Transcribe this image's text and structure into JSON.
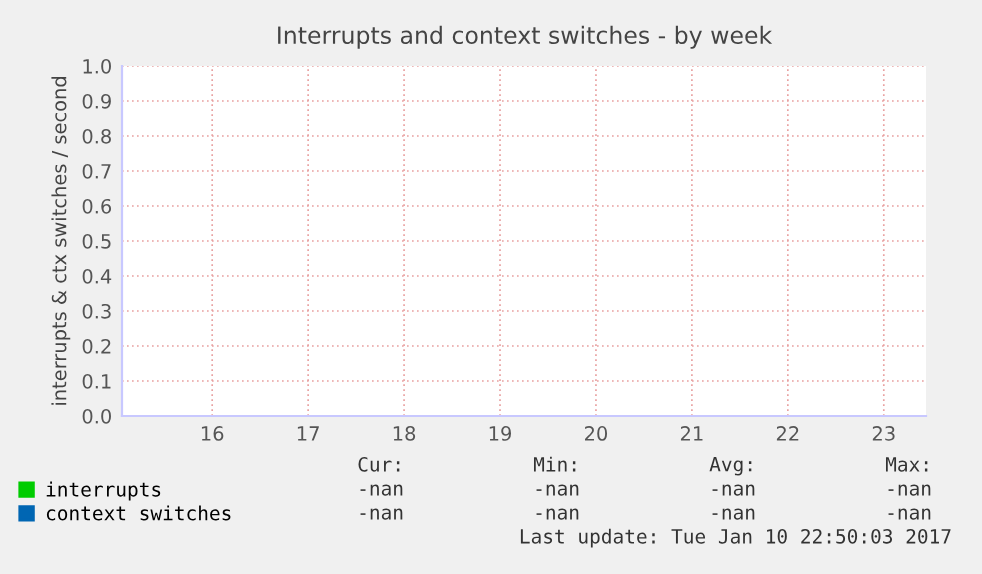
{
  "chart_data": {
    "type": "line",
    "title": "Interrupts and context switches - by week",
    "ylabel": "interrupts & ctx switches / second",
    "series": [
      {
        "name": "interrupts",
        "color": "#00cc00",
        "values": [
          null,
          null,
          null,
          null,
          null,
          null,
          null,
          null
        ]
      },
      {
        "name": "context switches",
        "color": "#0066b3",
        "values": [
          null,
          null,
          null,
          null,
          null,
          null,
          null,
          null
        ]
      }
    ],
    "categories": [
      "16",
      "17",
      "18",
      "19",
      "20",
      "21",
      "22",
      "23"
    ],
    "ylim": [
      0,
      1
    ],
    "yticks": [
      {
        "value": 0,
        "label": "0.0"
      },
      {
        "value": 0.1,
        "label": "0.1"
      },
      {
        "value": 0.2,
        "label": "0.2"
      },
      {
        "value": 0.3,
        "label": "0.3"
      },
      {
        "value": 0.4,
        "label": "0.4"
      },
      {
        "value": 0.5,
        "label": "0.5"
      },
      {
        "value": 0.6,
        "label": "0.6"
      },
      {
        "value": 0.7,
        "label": "0.7"
      },
      {
        "value": 0.8,
        "label": "0.8"
      },
      {
        "value": 0.9,
        "label": "0.9"
      },
      {
        "value": 1,
        "label": "1.0"
      }
    ],
    "grid": true,
    "legend": "bottom",
    "annotations": [
      "Cur:",
      "Min:",
      "Avg:",
      "Max:",
      "-nan",
      "-nan",
      "-nan",
      "-nan",
      "-nan",
      "-nan",
      "-nan",
      "-nan",
      "Last update: Tue Jan 10 22:50:03 2017"
    ]
  }
}
